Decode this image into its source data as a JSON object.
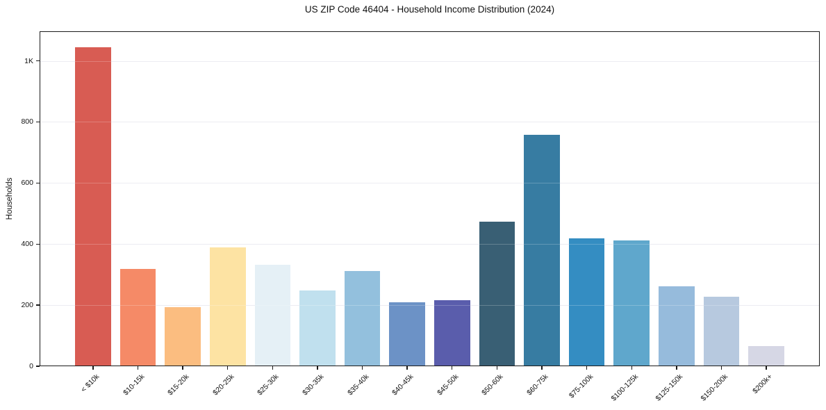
{
  "chart_data": {
    "type": "bar",
    "title": "US ZIP Code 46404 - Household Income Distribution (2024)",
    "xlabel": "",
    "ylabel": "Households",
    "categories": [
      "< $10k",
      "$10-15k",
      "$15-20k",
      "$20-25k",
      "$25-30k",
      "$30-35k",
      "$35-40k",
      "$40-45k",
      "$45-50k",
      "$50-60k",
      "$60-75k",
      "$75-100k",
      "$100-125k",
      "$125-150k",
      "$150-200k",
      "$200k+"
    ],
    "values": [
      1045,
      318,
      193,
      390,
      332,
      247,
      311,
      210,
      217,
      474,
      757,
      418,
      412,
      261,
      227,
      66
    ],
    "bar_colors": [
      "#d85c53",
      "#f58a67",
      "#fbbd80",
      "#fde3a3",
      "#e5f0f6",
      "#c0e0ee",
      "#93c0dd",
      "#6c92c6",
      "#5a5dac",
      "#395f74",
      "#377ca2",
      "#348dc2",
      "#5fa7cc",
      "#96bbdc",
      "#b7c9df",
      "#d6d7e5"
    ],
    "yticks": {
      "values": [
        0,
        200,
        400,
        600,
        800,
        1000
      ],
      "labels": [
        "0",
        "200",
        "400",
        "600",
        "800",
        "1K"
      ]
    },
    "ylim": [
      0,
      1097
    ],
    "x_tick_rotation": 45,
    "grid": "horizontal",
    "grid_color": "#e7e7ef",
    "frame_color": "#1a1a1a",
    "background_color": "#ffffff",
    "legend": "none"
  }
}
